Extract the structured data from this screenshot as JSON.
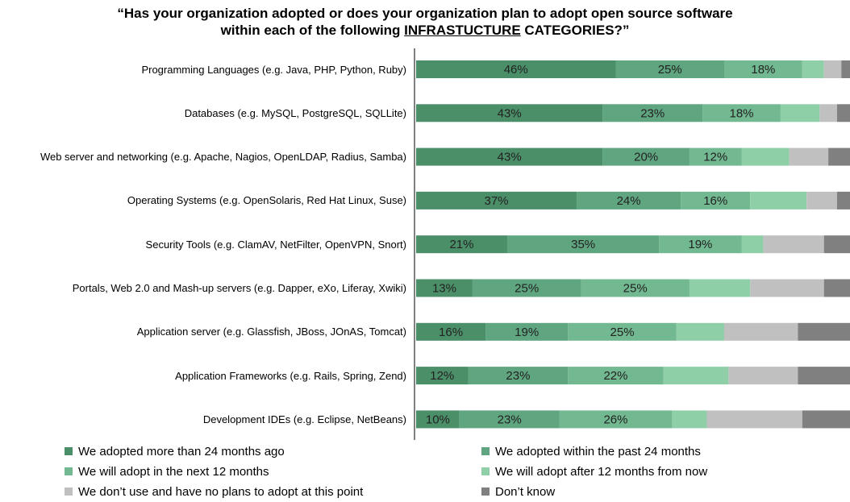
{
  "chart_data": {
    "type": "stacked-bar-horizontal",
    "title_lines": [
      "“Has your organization adopted or does your organization plan to adopt open source software",
      [
        "within each of the following ",
        "INFRASTUCTURE",
        " CATEGORIES?”"
      ]
    ],
    "categories": [
      "Programming Languages (e.g. Java, PHP, Python, Ruby)",
      "Databases (e.g. MySQL, PostgreSQL, SQLLite)",
      "Web server and networking (e.g. Apache, Nagios, OpenLDAP, Radius, Samba)",
      "Operating Systems (e.g. OpenSolaris, Red Hat Linux, Suse)",
      "Security Tools (e.g. ClamAV, NetFilter, OpenVPN, Snort)",
      "Portals, Web 2.0 and Mash-up servers (e.g. Dapper, eXo, Liferay, Xwiki)",
      "Application server (e.g. Glassfish, JBoss, JOnAS, Tomcat)",
      "Application Frameworks (e.g. Rails, Spring, Zend)",
      "Development IDEs (e.g. Eclipse, NetBeans)"
    ],
    "xlim": [
      0,
      100
    ],
    "series": [
      {
        "name": "We adopted more than 24 months ago",
        "color": "#4b8f69",
        "values": [
          46,
          43,
          43,
          37,
          21,
          13,
          16,
          12,
          10
        ],
        "value_labels": [
          "46%",
          "43%",
          "43%",
          "37%",
          "21%",
          "13%",
          "16%",
          "12%",
          "10%"
        ]
      },
      {
        "name": "We adopted within the past 24 months",
        "color": "#5fa57f",
        "values": [
          25,
          23,
          20,
          24,
          35,
          25,
          19,
          23,
          23
        ],
        "value_labels": [
          "25%",
          "23%",
          "20%",
          "24%",
          "35%",
          "25%",
          "19%",
          "23%",
          "23%"
        ]
      },
      {
        "name": "We will adopt in the next 12 months",
        "color": "#72b890",
        "values": [
          18,
          18,
          12,
          16,
          19,
          25,
          25,
          22,
          26
        ],
        "value_labels": [
          "18%",
          "18%",
          "12%",
          "16%",
          "19%",
          "25%",
          "25%",
          "22%",
          "26%"
        ]
      },
      {
        "name": "We will adopt after 12 months from now",
        "color": "#8ecfa8",
        "values": [
          5,
          9,
          11,
          13,
          5,
          14,
          11,
          15,
          8
        ]
      },
      {
        "name": "We don’t use and have no plans to adopt at this point",
        "color": "#c0c0c0",
        "values": [
          4,
          4,
          9,
          7,
          14,
          17,
          17,
          16,
          22
        ]
      },
      {
        "name": "Don’t know",
        "color": "#808080",
        "values": [
          2,
          3,
          5,
          3,
          6,
          6,
          12,
          12,
          11
        ]
      }
    ]
  }
}
